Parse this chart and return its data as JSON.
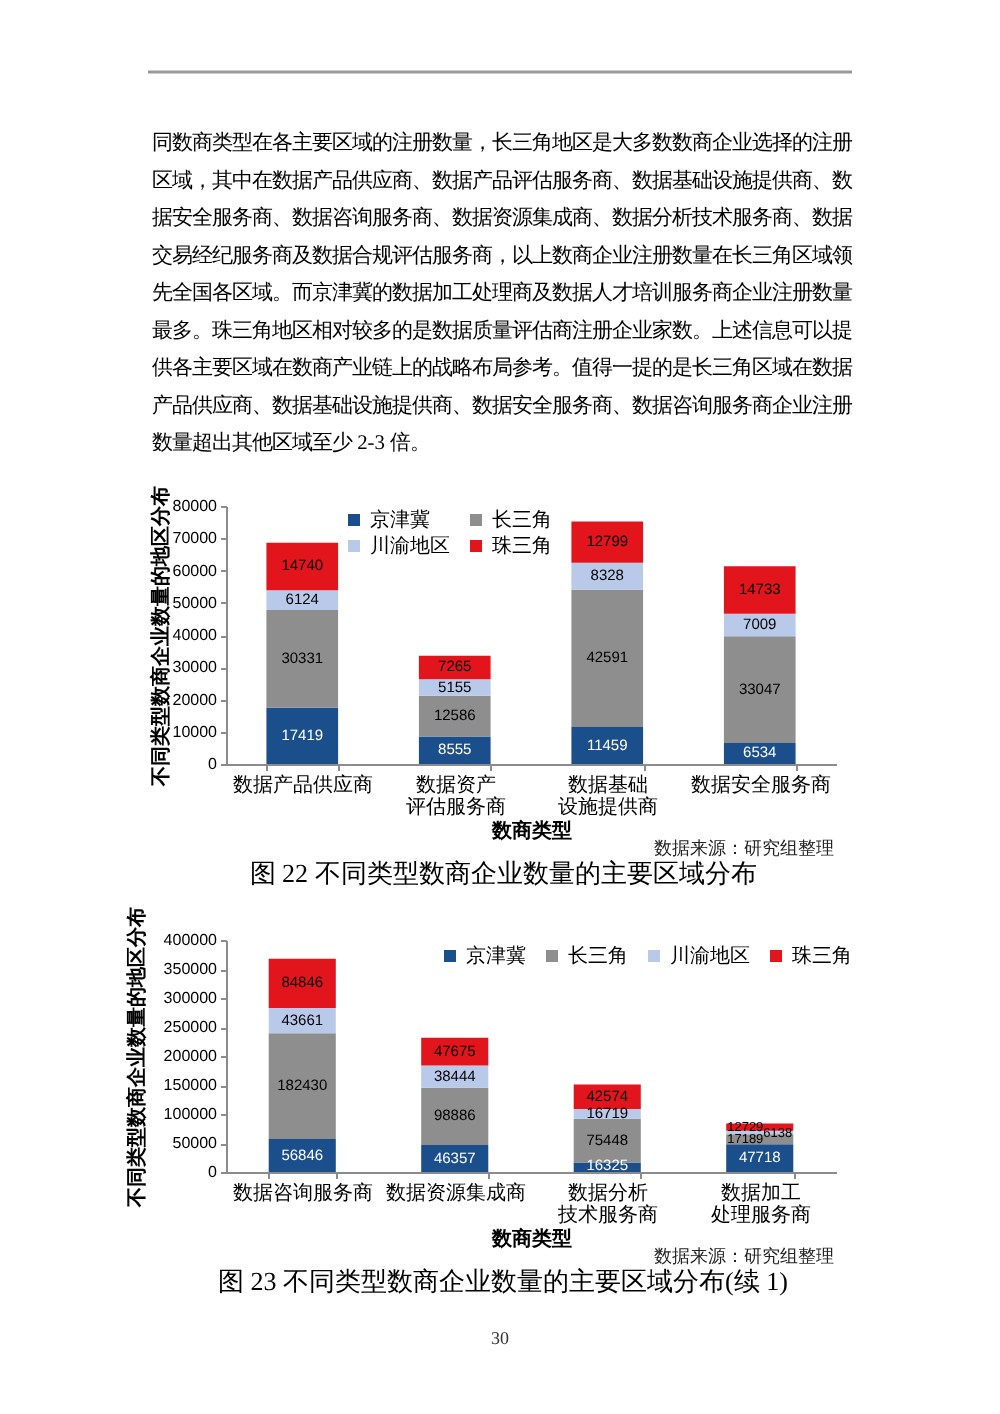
{
  "chart_data": [
    {
      "type": "other",
      "annotations": [
        "同数商类型在各主要区域的注册数量，长三角地区是大多数数商企业选择的注册区域，其中在数据产品供应商、数据产品评估服务商、数据基础设施提供商、数据安全服务商、数据咨询服务商、数据资源集成商、数据分析技术服务商、数据交易经纪服务商及数据合规评估服务商，以上数商企业注册数量在长三角区域领先全国各区域。而京津冀的数据加工处理商及数据人才培训服务商企业注册数量最多。珠三角地区相对较多的是数据质量评估商注册企业家数。上述信息可以提供各主要区域在数商产业链上的战略布局参考。值得一提的是长三角区域在数据产品供应商、数据基础设施提供商、数据安全服务商、数据咨询服务商企业注册数量超出其他区域至少 2-3 倍。",
        "30"
      ]
    },
    {
      "type": "bar",
      "stacked": true,
      "title": "图 22 不同类型数商企业数量的主要区域分布",
      "xlabel": "数商类型",
      "ylabel": "不同类型数商企业数量的地区分布",
      "categories": [
        "数据产品供应商",
        "数据资产评估服务商",
        "数据基础设施提供商",
        "数据安全服务商"
      ],
      "series": [
        {
          "name": "京津冀",
          "color": "#1b4f8b",
          "values": [
            17419,
            8555,
            11459,
            6534
          ]
        },
        {
          "name": "长三角",
          "color": "#8e8e8e",
          "values": [
            30331,
            12586,
            42591,
            33047
          ]
        },
        {
          "name": "川渝地区",
          "color": "#b8c9e9",
          "values": [
            6124,
            5155,
            8328,
            7009
          ]
        },
        {
          "name": "珠三角",
          "color": "#e2151d",
          "values": [
            14740,
            7265,
            12799,
            14733
          ]
        }
      ],
      "ylim": [
        0,
        80000
      ],
      "yticks": [
        0,
        10000,
        20000,
        30000,
        40000,
        50000,
        60000,
        70000,
        80000
      ],
      "data_labels": true,
      "legend": "top left",
      "annotations": [
        "数据来源：研究组整理"
      ]
    },
    {
      "type": "bar",
      "stacked": true,
      "title": "图 23 不同类型数商企业数量的主要区域分布(续 1)",
      "xlabel": "数商类型",
      "ylabel": "不同类型数商企业数量的地区分布",
      "categories": [
        "数据咨询服务商",
        "数据资源集成商",
        "数据分析技术服务商",
        "数据加工处理服务商"
      ],
      "series": [
        {
          "name": "京津冀",
          "color": "#1b4f8b",
          "values": [
            56846,
            46357,
            16325,
            47718
          ]
        },
        {
          "name": "长三角",
          "color": "#8e8e8e",
          "values": [
            182430,
            98886,
            75448,
            17189
          ]
        },
        {
          "name": "川渝地区",
          "color": "#b8c9e9",
          "values": [
            43661,
            38444,
            16719,
            6138
          ]
        },
        {
          "name": "珠三角",
          "color": "#e2151d",
          "values": [
            84846,
            47675,
            42574,
            12729
          ]
        }
      ],
      "ylim": [
        0,
        400000
      ],
      "yticks": [
        0,
        50000,
        100000,
        150000,
        200000,
        250000,
        300000,
        350000,
        400000
      ],
      "data_labels": true,
      "legend": "top right",
      "annotations": [
        "数据来源：研究组整理"
      ]
    }
  ]
}
